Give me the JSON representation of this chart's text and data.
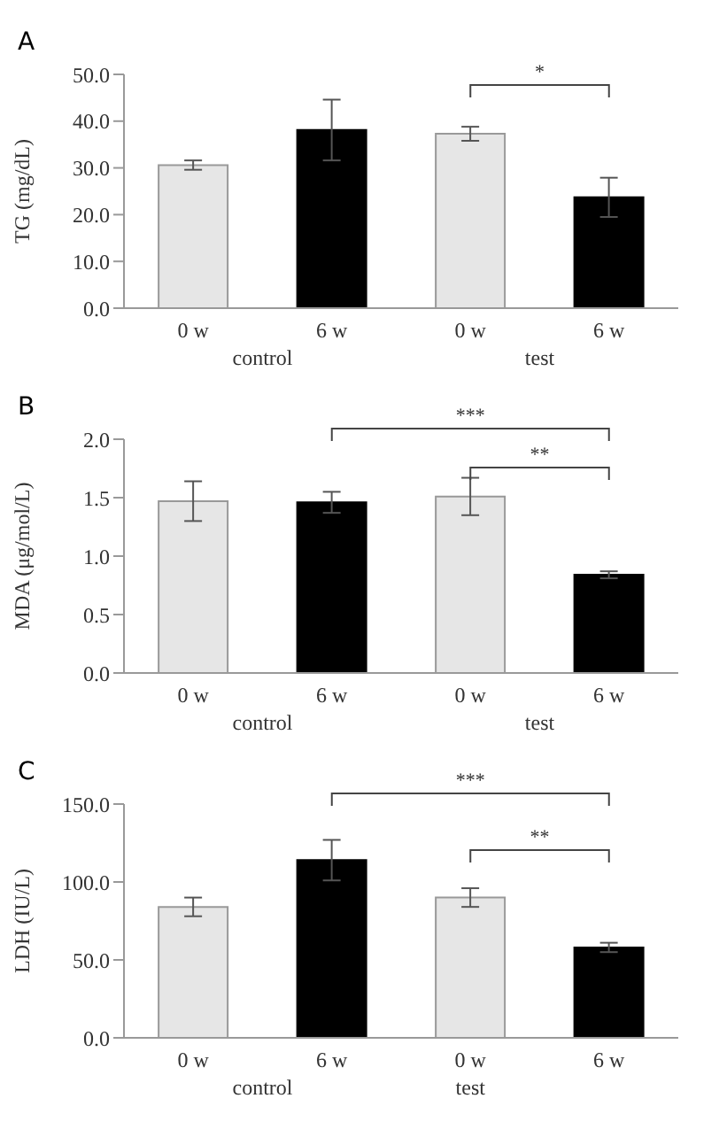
{
  "chart_data": [
    {
      "type": "bar",
      "title": "A",
      "ylabel": "TG (mg/dL)",
      "categories": [
        "0 w",
        "6 w",
        "0 w",
        "6 w"
      ],
      "values": [
        30.6,
        38.1,
        37.3,
        23.7
      ],
      "errors": [
        1.0,
        6.5,
        1.5,
        4.2
      ],
      "colors": [
        "#e6e6e6",
        "#000000",
        "#e6e6e6",
        "#000000"
      ],
      "ylim": [
        0,
        50
      ],
      "yticks": [
        {
          "value": 0,
          "label": "0.0"
        },
        {
          "value": 10,
          "label": "10.0"
        },
        {
          "value": 20,
          "label": "20.0"
        },
        {
          "value": 30,
          "label": "30.0"
        },
        {
          "value": 40,
          "label": "40.0"
        },
        {
          "value": 50,
          "label": "50.0"
        }
      ],
      "grid": false,
      "legend": false,
      "annotations": [
        "control",
        "test",
        "*"
      ]
    },
    {
      "type": "bar",
      "title": "B",
      "ylabel": "MDA (μg/mol/L)",
      "categories": [
        "0 w",
        "6 w",
        "0 w",
        "6 w"
      ],
      "values": [
        1.47,
        1.46,
        1.51,
        0.84
      ],
      "errors": [
        0.17,
        0.09,
        0.16,
        0.03
      ],
      "colors": [
        "#e6e6e6",
        "#000000",
        "#e6e6e6",
        "#000000"
      ],
      "ylim": [
        0,
        2
      ],
      "yticks": [
        {
          "value": 0,
          "label": "0.0"
        },
        {
          "value": 0.5,
          "label": "0.5"
        },
        {
          "value": 1,
          "label": "1.0"
        },
        {
          "value": 1.5,
          "label": "1.5"
        },
        {
          "value": 2,
          "label": "2.0"
        }
      ],
      "grid": false,
      "legend": false,
      "annotations": [
        "control",
        "test",
        "***",
        "**"
      ]
    },
    {
      "type": "bar",
      "title": "C",
      "ylabel": "LDH (IU/L)",
      "categories": [
        "0 w",
        "6 w",
        "0 w",
        "6 w"
      ],
      "values": [
        84,
        114,
        90,
        58
      ],
      "errors": [
        6,
        13,
        6,
        3
      ],
      "colors": [
        "#e6e6e6",
        "#000000",
        "#e6e6e6",
        "#000000"
      ],
      "ylim": [
        0,
        150
      ],
      "yticks": [
        {
          "value": 0,
          "label": "0.0"
        },
        {
          "value": 50,
          "label": "50.0"
        },
        {
          "value": 100,
          "label": "100.0"
        },
        {
          "value": 150,
          "label": "150.0"
        }
      ],
      "grid": false,
      "legend": false,
      "annotations": [
        "control",
        "test",
        "***",
        "**"
      ]
    }
  ]
}
